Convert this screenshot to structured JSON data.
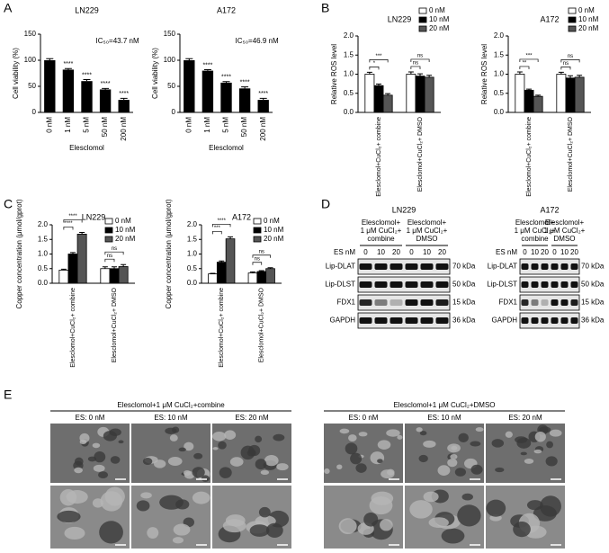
{
  "panel_labels": [
    "A",
    "B",
    "C",
    "D",
    "E"
  ],
  "chart_data": [
    {
      "type": "bar",
      "title": "LN229",
      "annotation": "IC₅₀=43.7 nM",
      "x_label": "Elesclomol",
      "y_label": "Cell viability (%)",
      "categories": [
        "0 nM",
        "1 nM",
        "5 nM",
        "50 nM",
        "200 nM"
      ],
      "values": [
        100,
        82,
        60,
        44,
        24
      ],
      "errors": [
        3,
        2,
        3,
        2,
        3
      ],
      "significance": [
        null,
        "****",
        "****",
        "****",
        "****"
      ],
      "color": "#000000",
      "ylim": [
        0,
        150
      ],
      "yticks": [
        0,
        50,
        100,
        150
      ]
    },
    {
      "type": "bar",
      "title": "A172",
      "annotation": "IC₅₀=46.9 nM",
      "x_label": "Elesclomol",
      "y_label": "Cell viability (%)",
      "categories": [
        "0 nM",
        "1 nM",
        "5 nM",
        "50 nM",
        "200 nM"
      ],
      "values": [
        100,
        80,
        57,
        46,
        24
      ],
      "errors": [
        3,
        2,
        2,
        3,
        3
      ],
      "significance": [
        null,
        "****",
        "****",
        "****",
        "****"
      ],
      "color": "#000000",
      "ylim": [
        0,
        150
      ],
      "yticks": [
        0,
        50,
        100,
        150
      ]
    },
    {
      "type": "bar",
      "title": "LN229",
      "y_label": "Relative ROS level",
      "categories": [
        "Elesclomol+CuCl₂+ combine",
        "Elesclomol+CuCl₂+ DMSO"
      ],
      "series": [
        {
          "name": "0 nM",
          "color": "#ffffff",
          "values": [
            1.0,
            1.0
          ],
          "errors": [
            0.05,
            0.06
          ]
        },
        {
          "name": "10 nM",
          "color": "#000000",
          "values": [
            0.7,
            0.95
          ],
          "errors": [
            0.04,
            0.06
          ]
        },
        {
          "name": "20 nM",
          "color": "#555555",
          "values": [
            0.45,
            0.92
          ],
          "errors": [
            0.04,
            0.05
          ]
        }
      ],
      "annotations": [
        "***",
        "*",
        "ns",
        "ns"
      ],
      "ylim": [
        0,
        2
      ],
      "yticks": [
        {
          "value": 0,
          "label": "0.0"
        },
        0.5,
        {
          "value": 1,
          "label": "1.0"
        },
        1.5,
        {
          "value": 2,
          "label": "2.0"
        }
      ]
    },
    {
      "type": "bar",
      "title": "A172",
      "y_label": "Relative ROS level",
      "categories": [
        "Elesclomol+CuCl₂+ combine",
        "Elesclomol+CuCl₂+ DMSO"
      ],
      "series": [
        {
          "name": "0 nM",
          "color": "#ffffff",
          "values": [
            1.0,
            1.0
          ],
          "errors": [
            0.06,
            0.05
          ]
        },
        {
          "name": "10 nM",
          "color": "#000000",
          "values": [
            0.58,
            0.9
          ],
          "errors": [
            0.03,
            0.06
          ]
        },
        {
          "name": "20 nM",
          "color": "#555555",
          "values": [
            0.42,
            0.92
          ],
          "errors": [
            0.03,
            0.05
          ]
        }
      ],
      "annotations": [
        "***",
        "**",
        "ns",
        "ns"
      ],
      "ylim": [
        0,
        2
      ],
      "yticks": [
        {
          "value": 0,
          "label": "0.0"
        },
        0.5,
        {
          "value": 1,
          "label": "1.0"
        },
        1.5,
        {
          "value": 2,
          "label": "2.0"
        }
      ]
    },
    {
      "type": "bar",
      "title": "LN229",
      "y_label": "Copper concentration (μmol/gprot)",
      "categories": [
        "Elesclomol+CuCl₂+ combine",
        "Elesclomol+CuCl₂+ DMSO"
      ],
      "series": [
        {
          "name": "0 nM",
          "color": "#ffffff",
          "values": [
            0.45,
            0.5
          ],
          "errors": [
            0.03,
            0.06
          ]
        },
        {
          "name": "10 nM",
          "color": "#000000",
          "values": [
            1.0,
            0.5
          ],
          "errors": [
            0.05,
            0.06
          ]
        },
        {
          "name": "20 nM",
          "color": "#555555",
          "values": [
            1.68,
            0.57
          ],
          "errors": [
            0.06,
            0.07
          ]
        }
      ],
      "annotations": [
        "****",
        "****",
        "ns",
        "ns"
      ],
      "ylim": [
        0,
        2
      ],
      "yticks": [
        {
          "value": 0,
          "label": "0.0"
        },
        0.5,
        {
          "value": 1,
          "label": "1.0"
        },
        1.5,
        {
          "value": 2,
          "label": "2.0"
        }
      ]
    },
    {
      "type": "bar",
      "title": "A172",
      "y_label": "Copper concentration (μmol/gprot)",
      "categories": [
        "Elesclomol+CuCl₂+ combine",
        "Elesclomol+CuCl₂+ DMSO"
      ],
      "series": [
        {
          "name": "0 nM",
          "color": "#ffffff",
          "values": [
            0.32,
            0.35
          ],
          "errors": [
            0.02,
            0.04
          ]
        },
        {
          "name": "10 nM",
          "color": "#000000",
          "values": [
            0.72,
            0.4
          ],
          "errors": [
            0.04,
            0.03
          ]
        },
        {
          "name": "20 nM",
          "color": "#555555",
          "values": [
            1.52,
            0.5
          ],
          "errors": [
            0.07,
            0.03
          ]
        }
      ],
      "annotations": [
        "****",
        "***",
        "ns",
        "ns"
      ],
      "ylim": [
        0,
        2
      ],
      "yticks": [
        {
          "value": 0,
          "label": "0.0"
        },
        0.5,
        {
          "value": 1,
          "label": "1.0"
        },
        1.5,
        {
          "value": 2,
          "label": "2.0"
        }
      ]
    }
  ],
  "blots": [
    {
      "title": "LN229",
      "groups": [
        [
          "Elesclomol+",
          "1 μM CuCl₂+",
          "combine"
        ],
        [
          "Elesclomol+",
          "1 μM CuCl₂+",
          "DMSO"
        ]
      ],
      "lane_header": "ES nM",
      "lanes": [
        "0",
        "10",
        "20",
        "0",
        "10",
        "20"
      ],
      "rows": [
        {
          "name": "Lip-DLAT",
          "size": "70 kDa"
        },
        {
          "name": "Lip-DLST",
          "size": "50 kDa"
        },
        {
          "name": "FDX1",
          "size": "15 kDa"
        },
        {
          "name": "GAPDH",
          "size": "36 kDa"
        }
      ]
    },
    {
      "title": "A172",
      "groups": [
        [
          "Elesclomol+",
          "1 μM CuCl₂+",
          "combine"
        ],
        [
          "Elesclomol+",
          "1 μM CuCl₂+",
          "DMSO"
        ]
      ],
      "lane_header": "ES nM",
      "lanes": [
        "0",
        "10",
        "20",
        "0",
        "10",
        "20"
      ],
      "rows": [
        {
          "name": "Lip-DLAT",
          "size": "70 kDa"
        },
        {
          "name": "Lip-DLST",
          "size": "50 kDa"
        },
        {
          "name": "FDX1",
          "size": "15 kDa"
        },
        {
          "name": "GAPDH",
          "size": "36 kDa"
        }
      ]
    }
  ],
  "micrographs": [
    {
      "title": "Elesclomol+1 μM CuCl₂+combine",
      "columns": [
        "ES: 0 nM",
        "ES: 10 nM",
        "ES: 20 nM"
      ]
    },
    {
      "title": "Elesclomol+1 μM CuCl₂+DMSO",
      "columns": [
        "ES: 0 nM",
        "ES: 10 nM",
        "ES: 20 nM"
      ]
    }
  ]
}
